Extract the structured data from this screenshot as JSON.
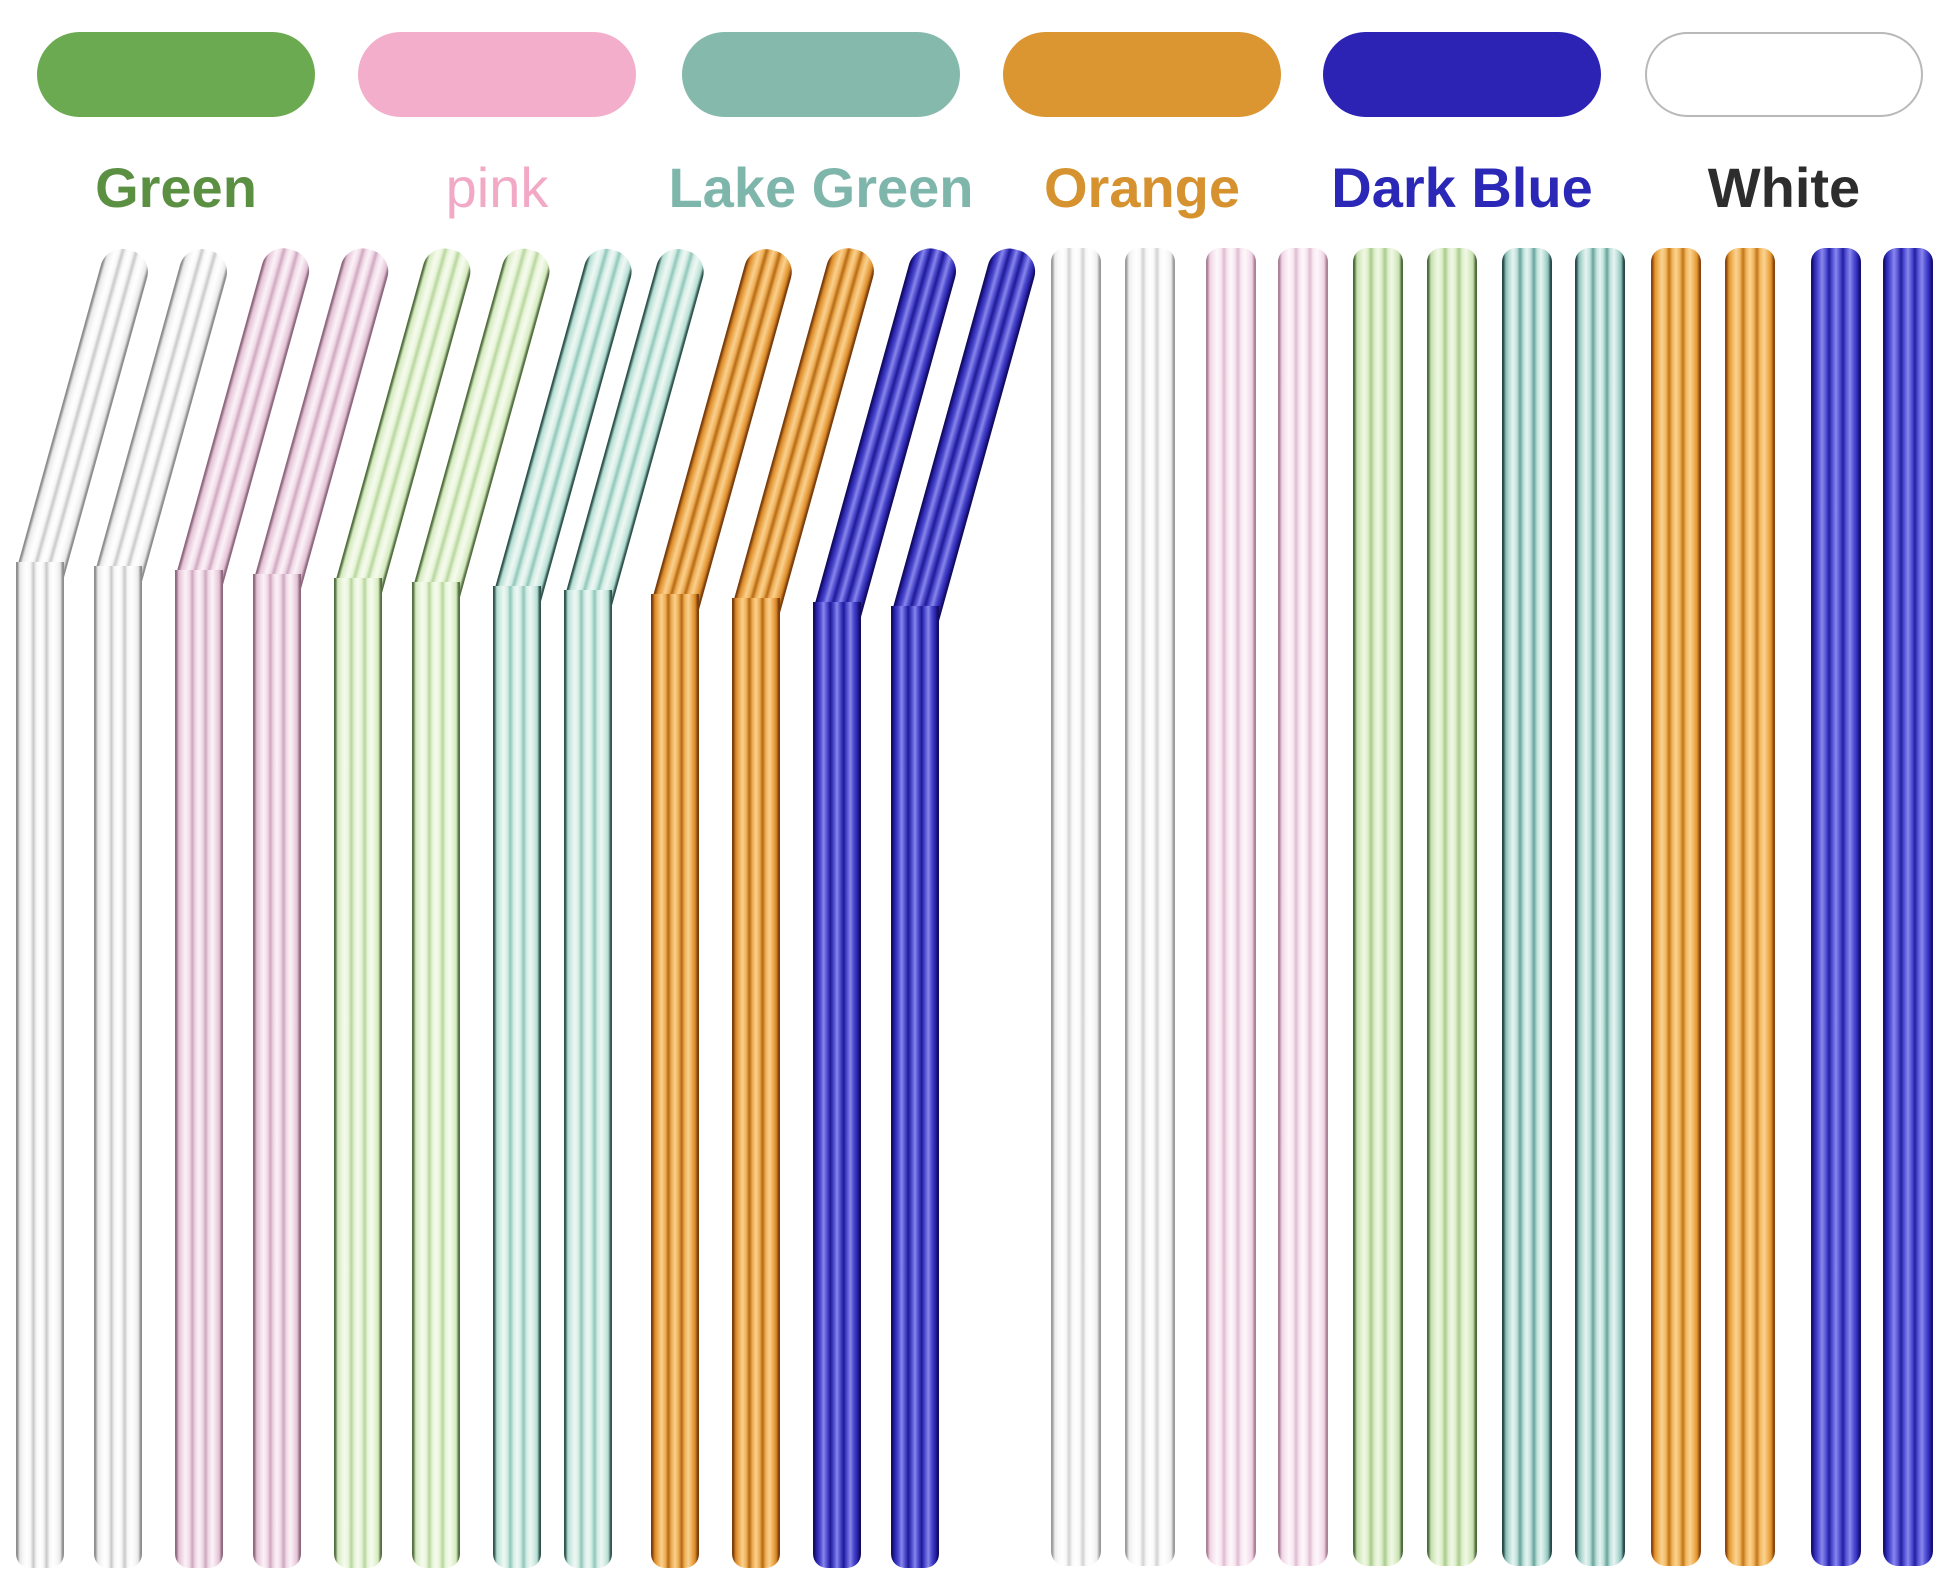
{
  "swatches": [
    {
      "label": "Green",
      "pill_color": "#6caa51",
      "label_color": "#5b9043",
      "thin_label": false
    },
    {
      "label": "pink",
      "pill_color": "#f3aecb",
      "label_color": "#f2a9c6",
      "thin_label": true
    },
    {
      "label": "Lake Green",
      "pill_color": "#85b9ac",
      "label_color": "#7fb6ab",
      "thin_label": false
    },
    {
      "label": "Orange",
      "pill_color": "#db9531",
      "label_color": "#d5922f",
      "thin_label": false
    },
    {
      "label": "Dark Blue",
      "pill_color": "#2c23b4",
      "label_color": "#2b28b8",
      "thin_label": false
    },
    {
      "label": "White",
      "pill_color": "#ffffff",
      "label_color": "#2d2d2d",
      "thin_label": false
    }
  ],
  "straws": {
    "bent_group_order": [
      "white",
      "white",
      "pink",
      "pink",
      "green",
      "green",
      "lake_green",
      "lake_green",
      "orange",
      "orange",
      "dark_blue",
      "dark_blue"
    ],
    "straight_group_order": [
      "white",
      "white",
      "pink",
      "pink",
      "green",
      "green",
      "lake_green",
      "lake_green",
      "orange",
      "orange",
      "dark_blue",
      "dark_blue"
    ],
    "palettes": {
      "white": {
        "bent": {
          "edge": "#8d8d8d",
          "dark": "#c9c9c9",
          "mid": "#e8e8e8",
          "light": "#f7f7f7",
          "core": "#ffffff"
        },
        "straight": {
          "edge": "#9a9a9a",
          "dark": "#d2d2d2",
          "mid": "#ededed",
          "light": "#f9f9f9",
          "core": "#ffffff"
        }
      },
      "pink": {
        "bent": {
          "edge": "#8f6880",
          "dark": "#cfa8bf",
          "mid": "#e2c2d4",
          "light": "#f1dbe8",
          "core": "#fbf2f7"
        },
        "straight": {
          "edge": "#ab7f95",
          "dark": "#e0bcd0",
          "mid": "#f0d4e4",
          "light": "#f8e8f1",
          "core": "#fdf7fa"
        }
      },
      "green": {
        "bent": {
          "edge": "#546f3f",
          "dark": "#b8d69e",
          "mid": "#d3e9bf",
          "light": "#e7f4d8",
          "core": "#f6fbee"
        },
        "straight": {
          "edge": "#4c6b3b",
          "dark": "#a9cb8c",
          "mid": "#c6dfaf",
          "light": "#ddeeca",
          "core": "#f0f8e6"
        }
      },
      "lake_green": {
        "bent": {
          "edge": "#2f534d",
          "dark": "#8ec7b9",
          "mid": "#b2ddd2",
          "light": "#d5ece5",
          "core": "#eef8f4"
        },
        "straight": {
          "edge": "#26494a",
          "dark": "#67a39b",
          "mid": "#8fc2bb",
          "light": "#bfe0da",
          "core": "#e6f4f1"
        }
      },
      "orange": {
        "bent": {
          "edge": "#7b3d0a",
          "dark": "#b36a15",
          "mid": "#d8892a",
          "light": "#f0ae55",
          "core": "#f8d190"
        },
        "straight": {
          "edge": "#8a4510",
          "dark": "#c0761a",
          "mid": "#e2952c",
          "light": "#f3b65e",
          "core": "#f9d494"
        }
      },
      "dark_blue": {
        "bent": {
          "edge": "#130c62",
          "dark": "#1f1a96",
          "mid": "#2a25ad",
          "light": "#4a48cc",
          "core": "#8886ea"
        },
        "straight": {
          "edge": "#161070",
          "dark": "#241fa0",
          "mid": "#2f2cbb",
          "light": "#5553d6",
          "core": "#8a88ec"
        }
      }
    }
  }
}
